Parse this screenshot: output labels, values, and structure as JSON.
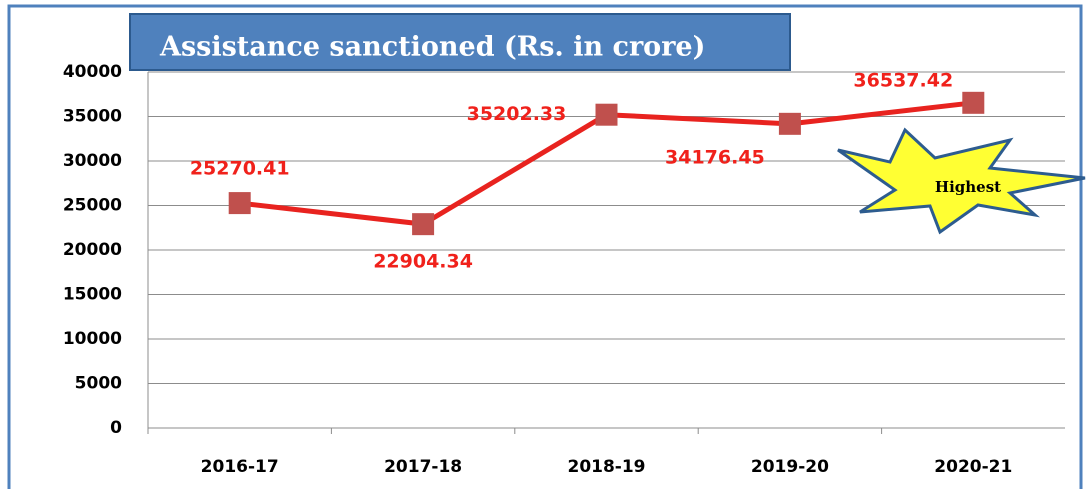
{
  "chart_data": {
    "type": "line",
    "title": "Assistance sanctioned (Rs. in crore)",
    "categories": [
      "2016-17",
      "2017-18",
      "2018-19",
      "2019-20",
      "2020-21"
    ],
    "series": [
      {
        "name": "Assistance sanctioned",
        "color": "#e8231f",
        "marker_color": "#c0504d",
        "values": [
          25270.41,
          22904.34,
          35202.33,
          34176.45,
          36537.42
        ]
      }
    ],
    "ylim": [
      0,
      40000
    ],
    "yticks": [
      0,
      5000,
      10000,
      15000,
      20000,
      25000,
      30000,
      35000,
      40000
    ],
    "grid": true,
    "annotation": "Highest"
  }
}
